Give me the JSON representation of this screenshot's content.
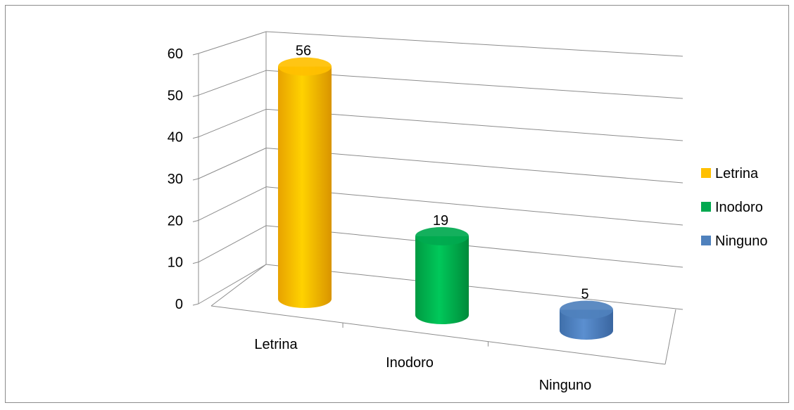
{
  "chart_data": {
    "type": "bar",
    "style": "3d-cylinder",
    "categories": [
      "Letrina",
      "Inodoro",
      "Ninguno"
    ],
    "values": [
      56,
      19,
      5
    ],
    "series": [
      {
        "name": "Letrina",
        "values": [
          56,
          null,
          null
        ],
        "color": "#FFC000"
      },
      {
        "name": "Inodoro",
        "values": [
          null,
          19,
          null
        ],
        "color": "#00A94F"
      },
      {
        "name": "Ninguno",
        "values": [
          null,
          null,
          5
        ],
        "color": "#4F81BD"
      }
    ],
    "data_labels": [
      "56",
      "19",
      "5"
    ],
    "yticks": [
      "0",
      "10",
      "20",
      "30",
      "40",
      "50",
      "60"
    ],
    "ylim": [
      0,
      60
    ],
    "grid": true,
    "legend": "right",
    "title": "",
    "xlabel": "",
    "ylabel": ""
  }
}
